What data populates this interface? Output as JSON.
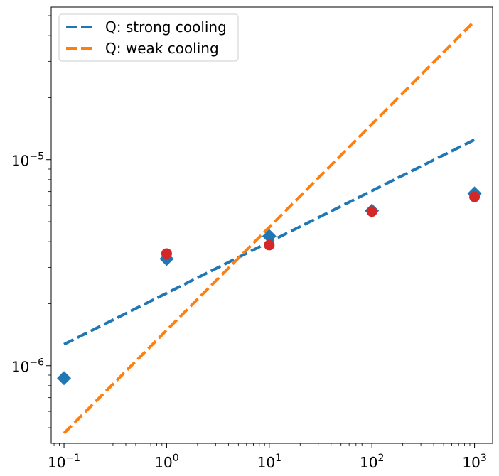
{
  "chart_data": {
    "type": "scatter",
    "title": "",
    "xlabel": "",
    "ylabel": "",
    "x_scale": "log",
    "y_scale": "log",
    "xlim": [
      0.075,
      1500
    ],
    "ylim": [
      4.2e-07,
      5.5e-05
    ],
    "grid": false,
    "legend_position": "top-left",
    "x_ticks": [
      {
        "value": 0.1,
        "base": "10",
        "exp": "−1"
      },
      {
        "value": 1,
        "base": "10",
        "exp": "0"
      },
      {
        "value": 10,
        "base": "10",
        "exp": "1"
      },
      {
        "value": 100,
        "base": "10",
        "exp": "2"
      },
      {
        "value": 1000,
        "base": "10",
        "exp": "3"
      }
    ],
    "y_ticks": [
      {
        "value": 1e-06,
        "base": "10",
        "exp": "−6"
      },
      {
        "value": 1e-05,
        "base": "10",
        "exp": "−5"
      }
    ],
    "series": [
      {
        "name": "Q: strong cooling",
        "kind": "line",
        "style": "dashed",
        "color": "#1f77b4",
        "x": [
          0.1,
          1000
        ],
        "y": [
          1.27e-06,
          1.25e-05
        ]
      },
      {
        "name": "Q: weak cooling",
        "kind": "line",
        "style": "dashed",
        "color": "#ff7f0e",
        "x": [
          0.1,
          1000
        ],
        "y": [
          4.7e-07,
          4.7e-05
        ]
      },
      {
        "kind": "scatter",
        "marker": "diamond",
        "color": "#1f77b4",
        "x": [
          0.1,
          1,
          10,
          100,
          1000
        ],
        "y": [
          8.7e-07,
          3.3e-06,
          4.25e-06,
          5.65e-06,
          6.85e-06
        ]
      },
      {
        "kind": "scatter",
        "marker": "circle",
        "color": "#d62728",
        "x": [
          1,
          10,
          100,
          1000
        ],
        "y": [
          3.5e-06,
          3.85e-06,
          5.6e-06,
          6.6e-06
        ]
      }
    ]
  }
}
